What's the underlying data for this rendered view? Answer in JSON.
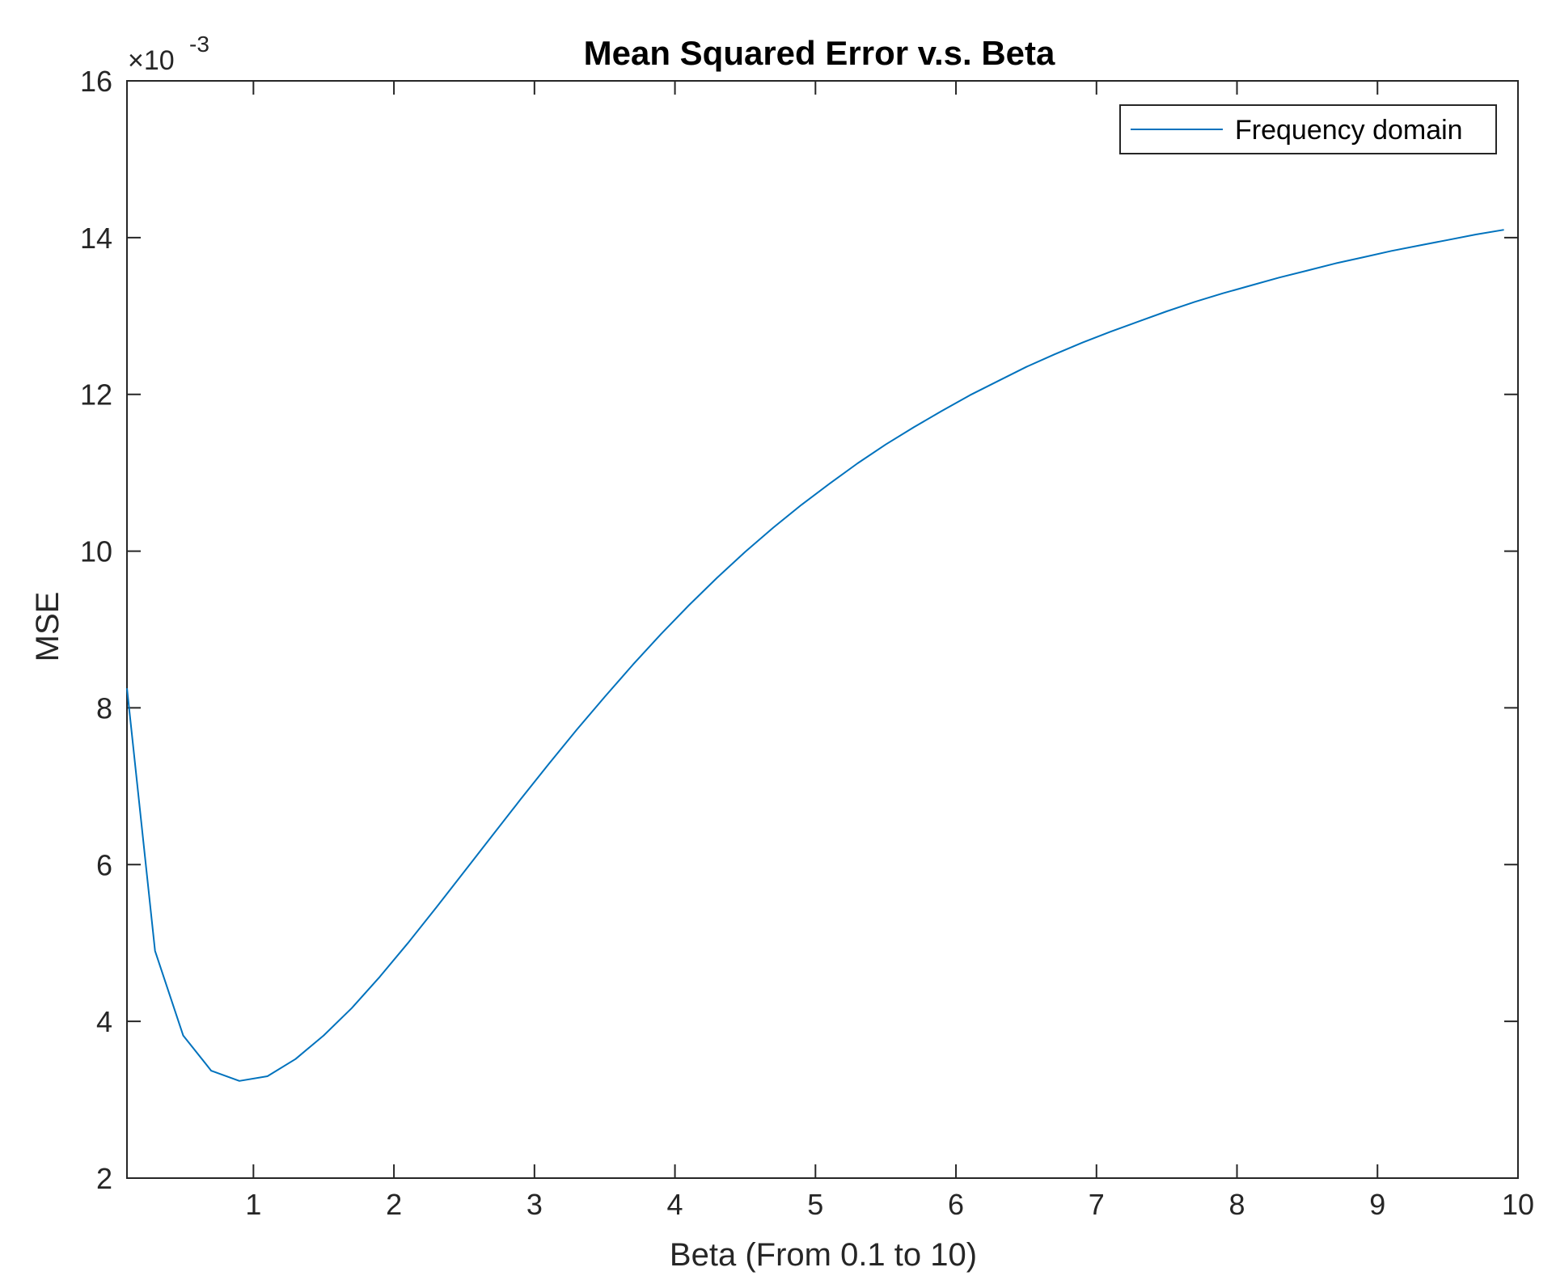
{
  "chart_data": {
    "type": "line",
    "title": "Mean Squared Error v.s. Beta",
    "xlabel": "Beta (From 0.1 to 10)",
    "ylabel": "MSE",
    "y_exponent_base": "×10",
    "y_exponent_power": "-3",
    "xlim": [
      0.1,
      10
    ],
    "ylim": [
      2,
      16
    ],
    "xticks": [
      1,
      2,
      3,
      4,
      5,
      6,
      7,
      8,
      9,
      10
    ],
    "yticks": [
      2,
      4,
      6,
      8,
      10,
      12,
      14,
      16
    ],
    "grid": false,
    "legend_position": "top-right",
    "series": [
      {
        "name": "Frequency domain",
        "color": "#0072BD",
        "x": [
          0.1,
          0.3,
          0.5,
          0.7,
          0.9,
          1.1,
          1.3,
          1.5,
          1.7,
          1.9,
          2.1,
          2.3,
          2.5,
          2.7,
          2.9,
          3.1,
          3.3,
          3.5,
          3.7,
          3.9,
          4.1,
          4.3,
          4.5,
          4.7,
          4.9,
          5.1,
          5.3,
          5.5,
          5.7,
          5.9,
          6.1,
          6.3,
          6.5,
          6.7,
          6.9,
          7.1,
          7.3,
          7.5,
          7.7,
          7.9,
          8.1,
          8.3,
          8.5,
          8.7,
          8.9,
          9.1,
          9.3,
          9.5,
          9.7,
          9.9
        ],
        "y": [
          8.25,
          4.9,
          3.82,
          3.37,
          3.24,
          3.3,
          3.52,
          3.82,
          4.17,
          4.57,
          5.0,
          5.45,
          5.91,
          6.37,
          6.83,
          7.28,
          7.72,
          8.14,
          8.55,
          8.94,
          9.31,
          9.66,
          9.99,
          10.3,
          10.59,
          10.86,
          11.12,
          11.36,
          11.58,
          11.79,
          11.99,
          12.17,
          12.35,
          12.51,
          12.66,
          12.8,
          12.93,
          13.06,
          13.18,
          13.29,
          13.39,
          13.49,
          13.58,
          13.67,
          13.75,
          13.83,
          13.9,
          13.97,
          14.04,
          14.1
        ]
      }
    ]
  }
}
